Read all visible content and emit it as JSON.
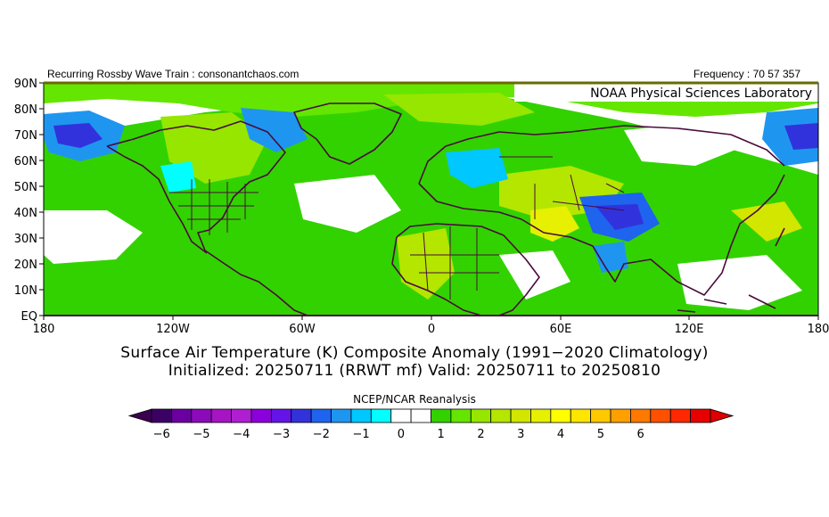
{
  "header": {
    "left": "Recurring Rossby Wave Train : consonantchaos.com",
    "right": "Frequency : 70 57 357"
  },
  "map": {
    "lab_label": "NOAA Physical Sciences Laboratory",
    "lat_labels": [
      "90N",
      "80N",
      "70N",
      "60N",
      "50N",
      "40N",
      "30N",
      "20N",
      "10N",
      "EQ"
    ],
    "lon_labels": [
      "180",
      "120W",
      "60W",
      "0",
      "60E",
      "120E",
      "180"
    ]
  },
  "title": {
    "line1": "Surface Air Temperature (K) Composite Anomaly (1991−2020 Climatology)",
    "line2": "Initialized: 20250711 (RRWT mf) Valid: 20250711 to 20250810"
  },
  "colorbar": {
    "title": "NCEP/NCAR Reanalysis",
    "tick_labels": [
      "−6",
      "−5",
      "−4",
      "−3",
      "−2",
      "−1",
      "0",
      "1",
      "2",
      "3",
      "4",
      "5",
      "6"
    ],
    "colors": [
      "#3c0064",
      "#6a00a0",
      "#8c0aba",
      "#a614c4",
      "#b01ed2",
      "#8c00dc",
      "#6414e6",
      "#3232dc",
      "#1e64ee",
      "#1e96f0",
      "#00c8ff",
      "#00ffff",
      "#ffffff",
      "#ffffff",
      "#32d200",
      "#64e600",
      "#96e600",
      "#b4e600",
      "#d2e600",
      "#e6f000",
      "#ffff00",
      "#ffe600",
      "#ffc800",
      "#ffa000",
      "#ff7800",
      "#ff5000",
      "#ff2800",
      "#e60000"
    ],
    "end_low": "#3c0050",
    "end_high": "#dc0000"
  }
}
